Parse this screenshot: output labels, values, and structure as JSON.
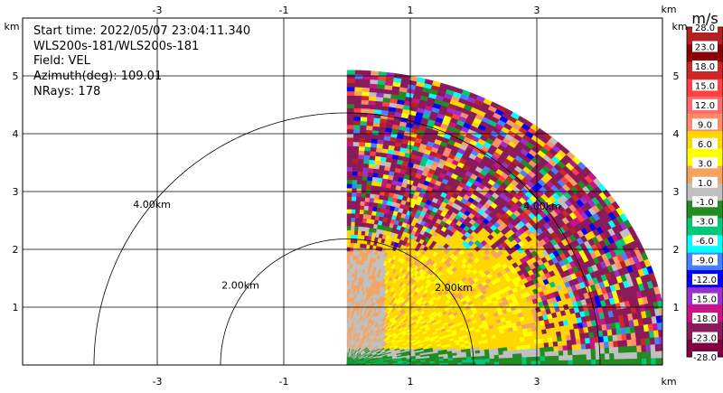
{
  "info": {
    "start_time": "Start time: 2022/05/07 23:04:11.340",
    "instrument": "WLS200s-181/WLS200s-181",
    "field": "Field: VEL",
    "azimuth": "Azimuth(deg): 109.01",
    "nrays": "NRays: 178"
  },
  "chart_data": {
    "type": "heatmap",
    "title": "",
    "x_axis": {
      "label": "km",
      "ticks": [
        "-3",
        "-1",
        "1",
        "3"
      ],
      "range": [
        -4.2,
        4.2
      ]
    },
    "y_axis": {
      "label": "km",
      "ticks": [
        "1",
        "2",
        "3",
        "4",
        "5"
      ],
      "range": [
        0,
        5.2
      ]
    },
    "range_rings": [
      {
        "label": "2.00km",
        "radius_km": 2.0
      },
      {
        "label": "4.00km",
        "radius_km": 4.0
      }
    ],
    "ring_labels_east": [
      "2.00km",
      "4.00km"
    ],
    "max_range_km": 5.1,
    "sector_deg": [
      0,
      90
    ],
    "grid": true,
    "colorbar": {
      "unit": "m/s",
      "labels": [
        "28.0",
        "23.0",
        "18.0",
        "15.0",
        "12.0",
        "9.0",
        "6.0",
        "3.0",
        "1.0",
        "-1.0",
        "-3.0",
        "-6.0",
        "-9.0",
        "-12.0",
        "-15.0",
        "-18.0",
        "-23.0",
        "-28.0"
      ],
      "colors": [
        "#b22222",
        "#8b0000",
        "#cd2626",
        "#ff4040",
        "#ff6a6a",
        "#ff8c69",
        "#ffd700",
        "#ffff00",
        "#f4a460",
        "#c0c0c0",
        "#228b22",
        "#00c878",
        "#00ffff",
        "#4682ff",
        "#0000ff",
        "#9932cc",
        "#c71585",
        "#8b1a5a",
        "#800040"
      ]
    }
  }
}
